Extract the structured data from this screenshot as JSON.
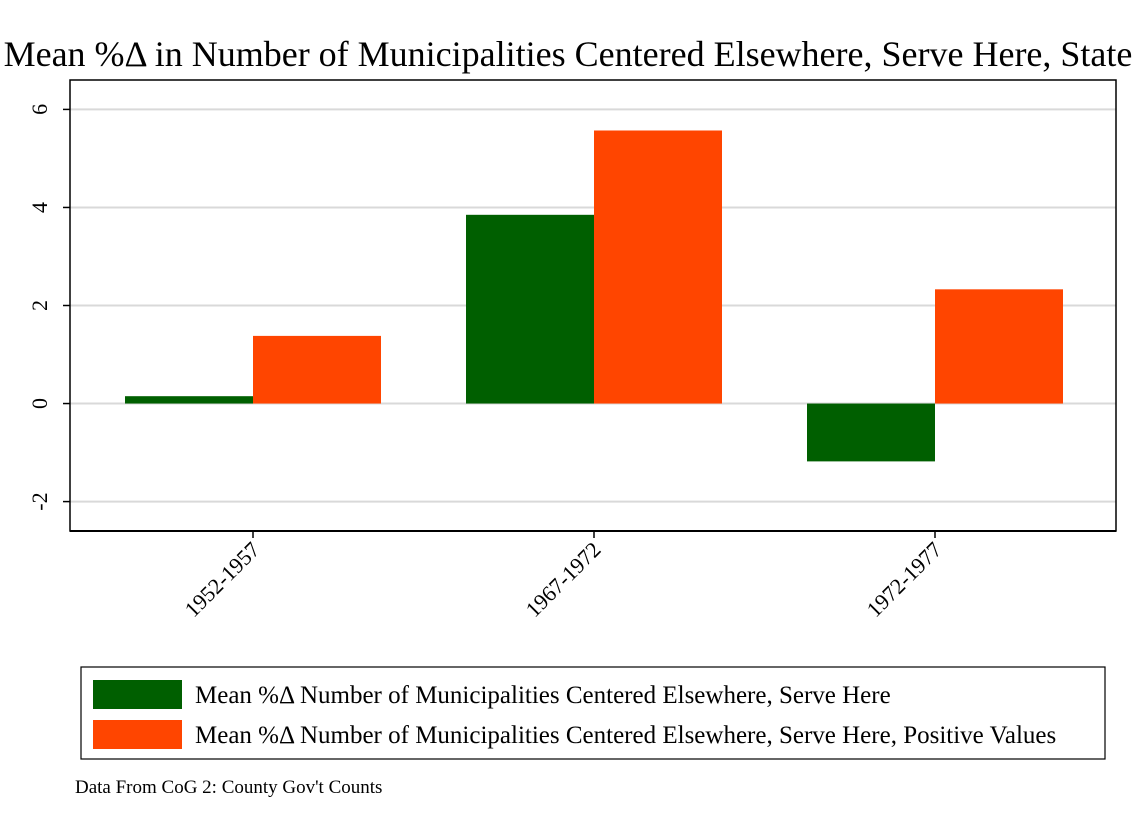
{
  "chart_data": {
    "type": "bar",
    "title": "Mean %Δ in Number of Municipalities Centered Elsewhere, Serve Here, State",
    "categories": [
      "1952-1957",
      "1967-1972",
      "1972-1977"
    ],
    "series": [
      {
        "name": "Mean %Δ Number of Municipalities Centered Elsewhere, Serve Here",
        "values": [
          0.15,
          3.85,
          -1.18
        ]
      },
      {
        "name": "Mean %Δ Number of Municipalities Centered Elsewhere, Serve Here, Positive Values",
        "values": [
          1.38,
          5.57,
          2.33
        ]
      }
    ],
    "ylim": [
      -2.6,
      6.6
    ],
    "yticks": [
      -2,
      0,
      2,
      4,
      6
    ],
    "xlabel": "",
    "ylabel": "",
    "grid": true,
    "legend_position": "bottom",
    "note": "Data From CoG 2: County Gov't Counts",
    "colors": [
      "#005f00",
      "#ff4500"
    ]
  }
}
